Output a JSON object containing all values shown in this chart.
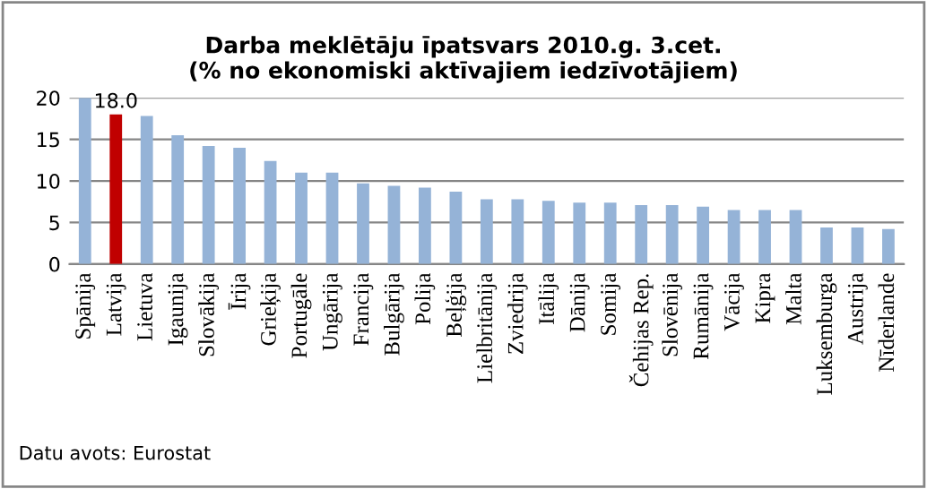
{
  "chart_data": {
    "type": "bar",
    "title": "Darba meklētāju īpatsvars 2010.g. 3.cet.\n(% no ekonomiski aktīvajiem iedzīvotājiem)",
    "categories": [
      "Spānija",
      "Latvija",
      "Lietuva",
      "Igaunija",
      "Slovākija",
      "Īrija",
      "Grieķija",
      "Portugāle",
      "Ungārija",
      "Francija",
      "Bulgārija",
      "Polija",
      "Beļģija",
      "Lielbritānija",
      "Zviedrija",
      "Itālija",
      "Dānija",
      "Somija",
      "Čehijas Rep.",
      "Slovēnija",
      "Rumānija",
      "Vācija",
      "Kipra",
      "Malta",
      "Luksemburga",
      "Austrija",
      "Nīderlande"
    ],
    "values": [
      20.0,
      18.0,
      17.8,
      15.5,
      14.2,
      14.0,
      12.4,
      11.0,
      11.0,
      9.7,
      9.4,
      9.2,
      8.7,
      7.8,
      7.8,
      7.6,
      7.4,
      7.4,
      7.1,
      7.1,
      6.9,
      6.5,
      6.5,
      6.5,
      4.4,
      4.4,
      4.2
    ],
    "value_labels": [
      null,
      "18.0",
      null,
      null,
      null,
      null,
      null,
      null,
      null,
      null,
      null,
      null,
      null,
      null,
      null,
      null,
      null,
      null,
      null,
      null,
      null,
      null,
      null,
      null,
      null,
      null,
      null
    ],
    "colors": [
      "#95b3d7",
      "#c00000",
      "#95b3d7",
      "#95b3d7",
      "#95b3d7",
      "#95b3d7",
      "#95b3d7",
      "#95b3d7",
      "#95b3d7",
      "#95b3d7",
      "#95b3d7",
      "#95b3d7",
      "#95b3d7",
      "#95b3d7",
      "#95b3d7",
      "#95b3d7",
      "#95b3d7",
      "#95b3d7",
      "#95b3d7",
      "#95b3d7",
      "#95b3d7",
      "#95b3d7",
      "#95b3d7",
      "#95b3d7",
      "#95b3d7",
      "#95b3d7",
      "#95b3d7"
    ],
    "ylim": [
      0,
      20
    ],
    "yticks": [
      0,
      5,
      10,
      15,
      20
    ],
    "grid": "y",
    "annotations": [
      "Datu avots: Eurostat"
    ]
  }
}
